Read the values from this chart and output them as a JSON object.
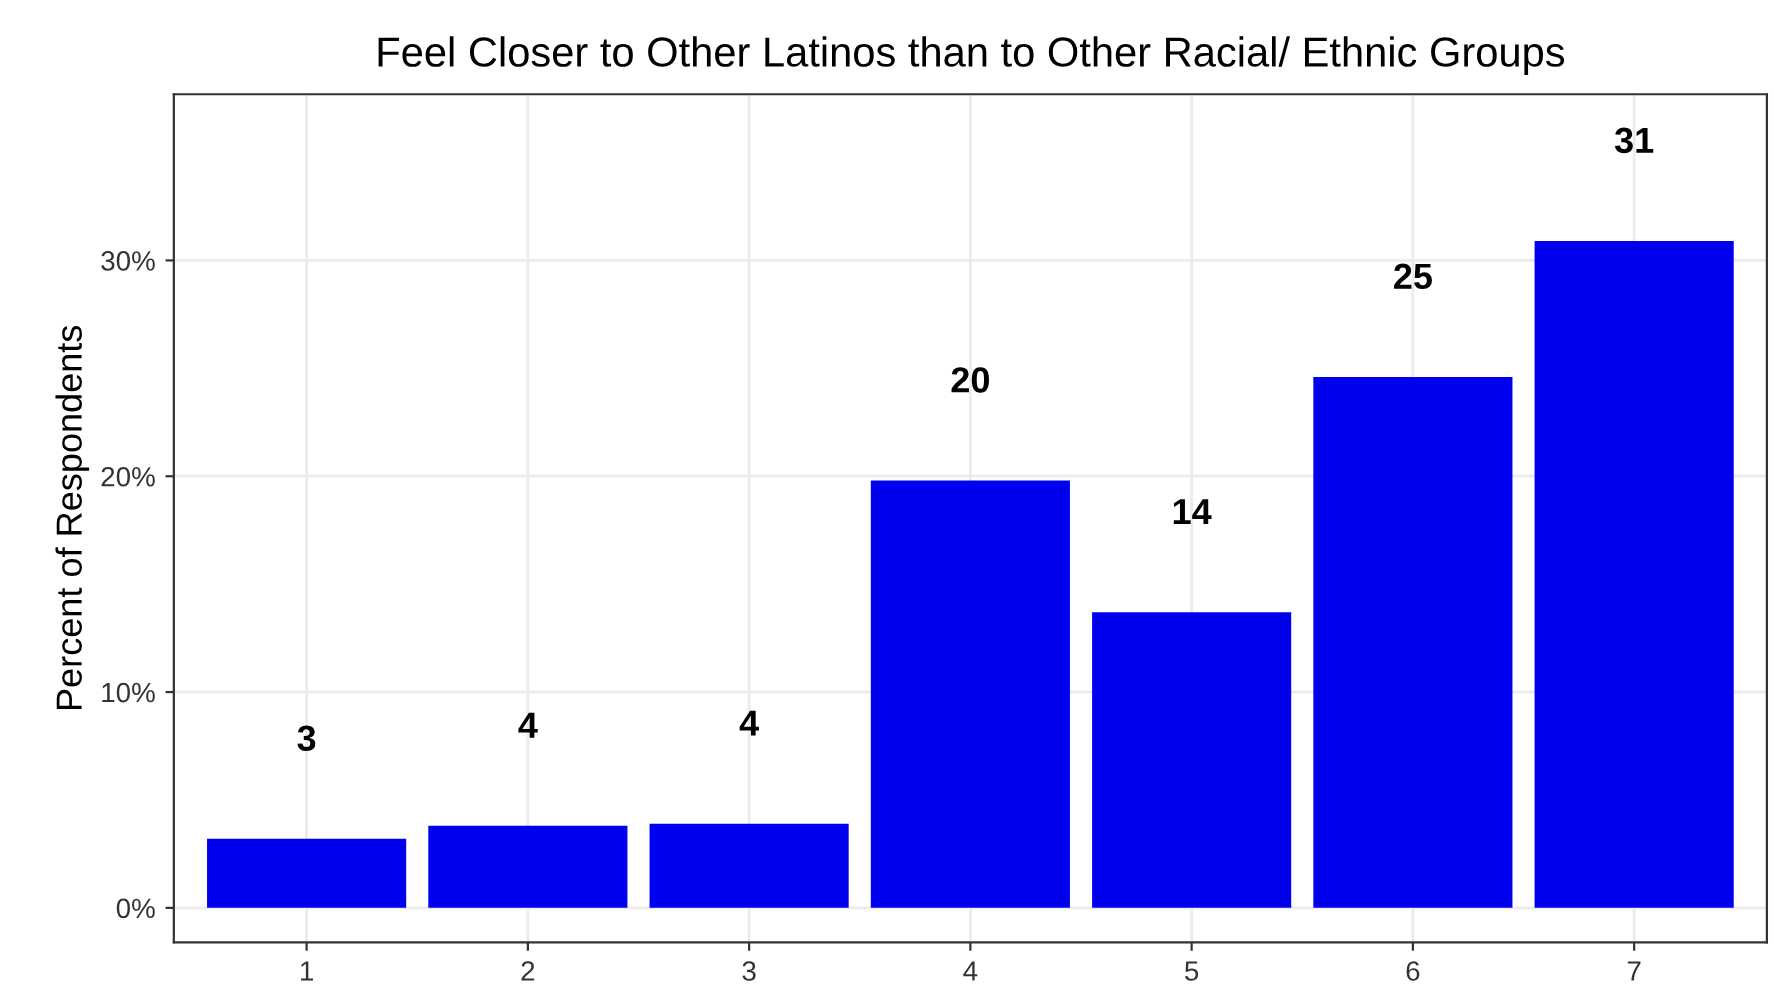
{
  "chart_data": {
    "type": "bar",
    "title": "Feel Closer to Other Latinos than to Other Racial/ Ethnic Groups",
    "ylabel": "Percent of Respondents",
    "categories": [
      "1",
      "2",
      "3",
      "4",
      "5",
      "6",
      "7"
    ],
    "values": [
      3.2,
      3.8,
      3.9,
      19.8,
      13.7,
      24.6,
      30.9
    ],
    "value_labels": [
      "3",
      "4",
      "4",
      "20",
      "14",
      "25",
      "31"
    ],
    "color": "#0000ee",
    "ylim": [
      -1.6,
      37.7
    ],
    "yticks": [
      {
        "value": 0,
        "label": "0%"
      },
      {
        "value": 10,
        "label": "10%"
      },
      {
        "value": 20,
        "label": "20%"
      },
      {
        "value": 30,
        "label": "30%"
      }
    ],
    "grid": true
  }
}
